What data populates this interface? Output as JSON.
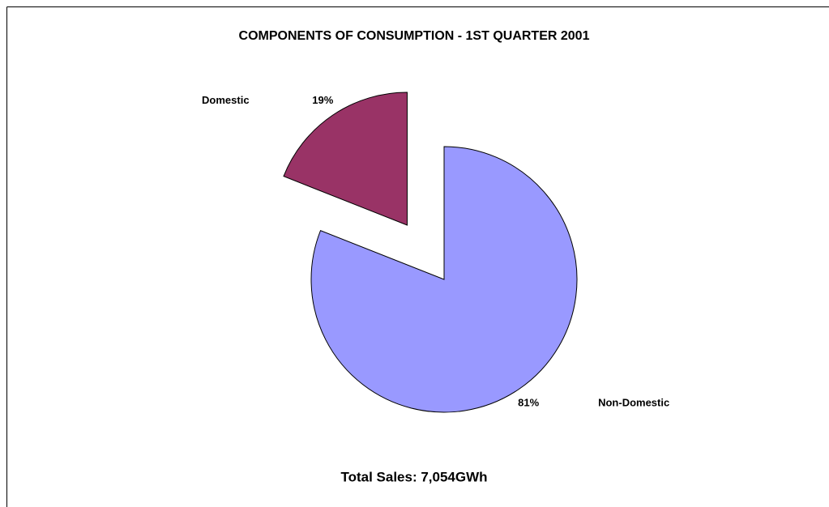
{
  "chart_data": {
    "type": "pie",
    "title": "COMPONENTS OF CONSUMPTION - 1ST QUARTER 2001",
    "categories": [
      "Non-Domestic",
      "Domestic"
    ],
    "values": [
      81,
      19
    ],
    "value_labels": [
      "81%",
      "19%"
    ],
    "colors": [
      "#9999ff",
      "#993366"
    ],
    "explode": [
      false,
      true
    ],
    "annotation": "Total Sales: 7,054GWh"
  }
}
